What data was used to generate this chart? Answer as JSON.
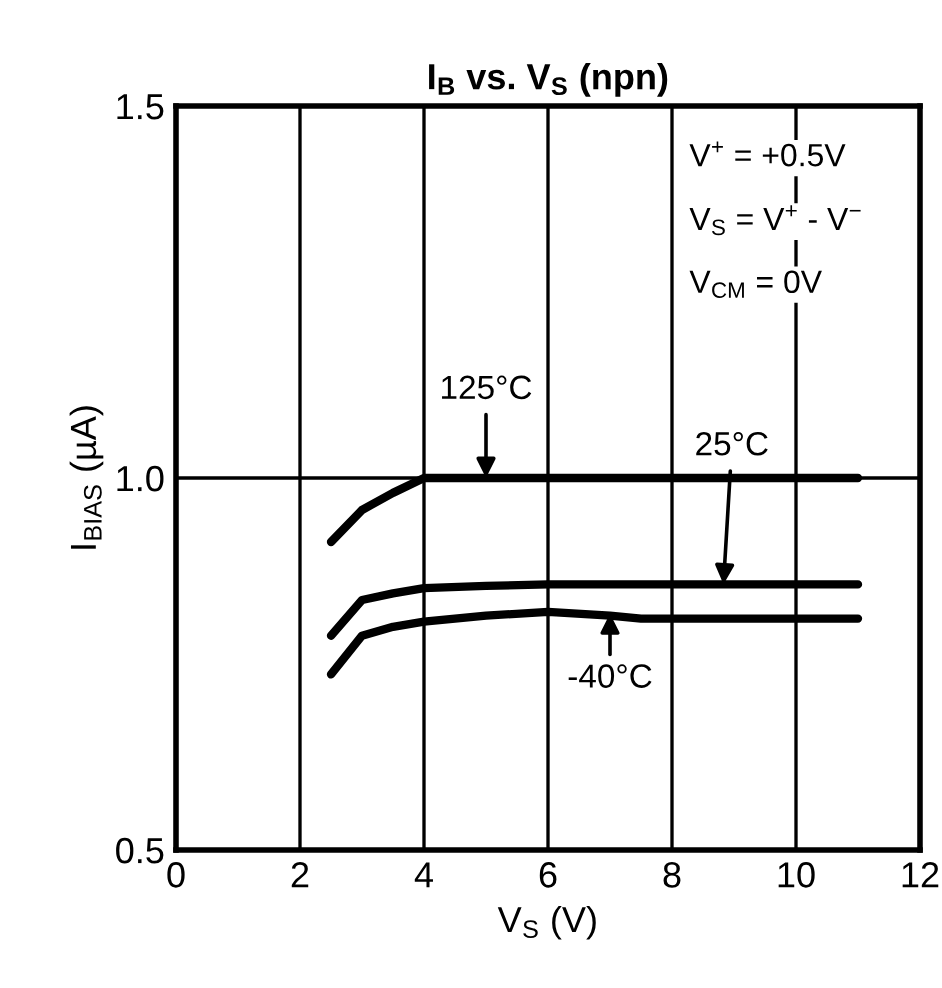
{
  "chart_data": {
    "type": "line",
    "title": "I$_{B}$ vs. V$_{S}$ (npn)",
    "xlabel": "V$_{S}$ (V)",
    "ylabel": "I$_{BIAS}$ (µA)",
    "xlim": [
      0,
      12
    ],
    "xticks": [
      0,
      2,
      4,
      6,
      8,
      10,
      12
    ],
    "ylim": [
      0.5,
      1.5
    ],
    "yticks": [
      0.5,
      {
        "value": 1,
        "label": "1.0"
      },
      1.5
    ],
    "grid": true,
    "marker": "none",
    "line_style": "solid",
    "series": [
      {
        "color": "#000000",
        "x": [
          2.5,
          3,
          3.5,
          4,
          5,
          6,
          8,
          10,
          11
        ],
        "values": [
          0.914,
          0.957,
          0.98,
          1.0,
          1.0,
          1.0,
          1.0,
          1.0,
          1.0
        ]
      },
      {
        "color": "#000000",
        "x": [
          2.5,
          3,
          3.5,
          4,
          5,
          6,
          8,
          10,
          11
        ],
        "values": [
          0.788,
          0.836,
          0.845,
          0.852,
          0.855,
          0.857,
          0.857,
          0.857,
          0.857
        ]
      },
      {
        "color": "#000000",
        "x": [
          2.5,
          3,
          3.5,
          4,
          5,
          6,
          7,
          7.5,
          8,
          10,
          11
        ],
        "values": [
          0.736,
          0.788,
          0.8,
          0.807,
          0.815,
          0.82,
          0.815,
          0.811,
          0.811,
          0.811,
          0.811
        ]
      }
    ],
    "annotations": [
      "V$^{+}$ = +0.5V",
      "V$_{S}$ = V$^{+}$ - V$^{−}$",
      "V$_{CM}$ = 0V",
      {
        "text": "125°C",
        "x": 5,
        "y": 1.0
      },
      {
        "text": "25°C",
        "x": 8.83,
        "y": 0.857
      },
      {
        "text": "-40°C",
        "x": 7,
        "y": 0.818
      }
    ]
  }
}
